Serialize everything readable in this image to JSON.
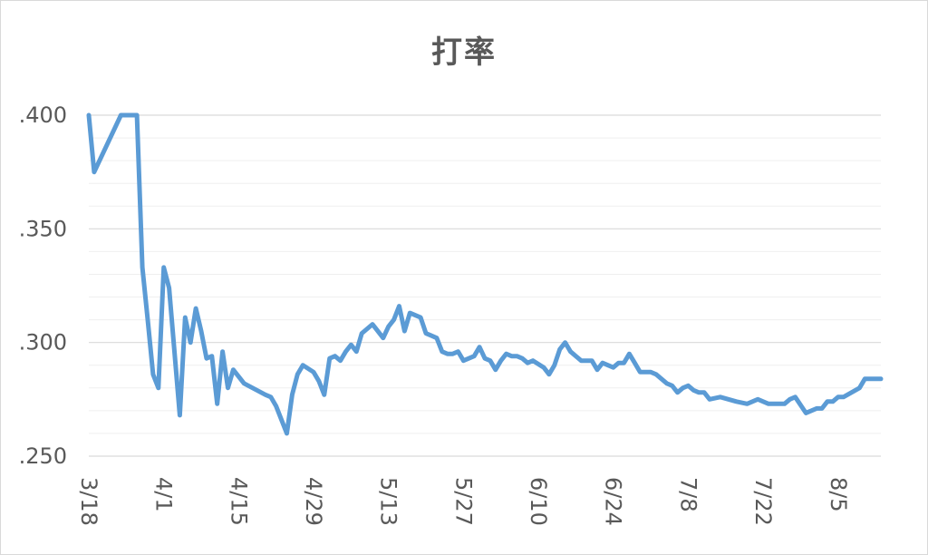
{
  "chart_data": {
    "type": "line",
    "title": "打率",
    "xlabel": "",
    "ylabel": "",
    "ylim": [
      0.25,
      0.4
    ],
    "yticks": [
      {
        "value": 0.25,
        "label": ".250"
      },
      {
        "value": 0.3,
        "label": ".300"
      },
      {
        "value": 0.35,
        "label": ".350"
      },
      {
        "value": 0.4,
        "label": ".400"
      }
    ],
    "xlim": [
      "2024-03-18",
      "2024-08-13"
    ],
    "xticks": [
      {
        "date": "2024-03-18",
        "label": "3/18"
      },
      {
        "date": "2024-04-01",
        "label": "4/1"
      },
      {
        "date": "2024-04-15",
        "label": "4/15"
      },
      {
        "date": "2024-04-29",
        "label": "4/29"
      },
      {
        "date": "2024-05-13",
        "label": "5/13"
      },
      {
        "date": "2024-05-27",
        "label": "5/27"
      },
      {
        "date": "2024-06-10",
        "label": "6/10"
      },
      {
        "date": "2024-06-24",
        "label": "6/24"
      },
      {
        "date": "2024-07-08",
        "label": "7/8"
      },
      {
        "date": "2024-07-22",
        "label": "7/22"
      },
      {
        "date": "2024-08-05",
        "label": "8/5"
      }
    ],
    "grid": true,
    "legend": "none",
    "color": "#5b9bd5",
    "series": [
      {
        "x": [
          "2024-03-18",
          "2024-03-19",
          "2024-03-24",
          "2024-03-27",
          "2024-03-28",
          "2024-03-29",
          "2024-03-30",
          "2024-03-31",
          "2024-04-01",
          "2024-04-02",
          "2024-04-04",
          "2024-04-05",
          "2024-04-06",
          "2024-04-07",
          "2024-04-08",
          "2024-04-09",
          "2024-04-10",
          "2024-04-11",
          "2024-04-12",
          "2024-04-13",
          "2024-04-14",
          "2024-04-15",
          "2024-04-16",
          "2024-04-20",
          "2024-04-21",
          "2024-04-22",
          "2024-04-23",
          "2024-04-24",
          "2024-04-25",
          "2024-04-26",
          "2024-04-27",
          "2024-04-29",
          "2024-04-30",
          "2024-05-01",
          "2024-05-02",
          "2024-05-03",
          "2024-05-04",
          "2024-05-05",
          "2024-05-06",
          "2024-05-07",
          "2024-05-08",
          "2024-05-10",
          "2024-05-11",
          "2024-05-12",
          "2024-05-13",
          "2024-05-14",
          "2024-05-15",
          "2024-05-16",
          "2024-05-17",
          "2024-05-18",
          "2024-05-19",
          "2024-05-20",
          "2024-05-21",
          "2024-05-22",
          "2024-05-23",
          "2024-05-24",
          "2024-05-25",
          "2024-05-26",
          "2024-05-27",
          "2024-05-28",
          "2024-05-29",
          "2024-05-30",
          "2024-05-31",
          "2024-06-01",
          "2024-06-02",
          "2024-06-03",
          "2024-06-04",
          "2024-06-05",
          "2024-06-06",
          "2024-06-07",
          "2024-06-08",
          "2024-06-09",
          "2024-06-11",
          "2024-06-12",
          "2024-06-13",
          "2024-06-14",
          "2024-06-15",
          "2024-06-16",
          "2024-06-18",
          "2024-06-19",
          "2024-06-20",
          "2024-06-21",
          "2024-06-22",
          "2024-06-23",
          "2024-06-24",
          "2024-06-25",
          "2024-06-26",
          "2024-06-27",
          "2024-06-28",
          "2024-06-29",
          "2024-06-30",
          "2024-07-01",
          "2024-07-02",
          "2024-07-03",
          "2024-07-04",
          "2024-07-05",
          "2024-07-06",
          "2024-07-07",
          "2024-07-08",
          "2024-07-09",
          "2024-07-10",
          "2024-07-11",
          "2024-07-12",
          "2024-07-14",
          "2024-07-17",
          "2024-07-19",
          "2024-07-21",
          "2024-07-23",
          "2024-07-24",
          "2024-07-26",
          "2024-07-27",
          "2024-07-28",
          "2024-07-30",
          "2024-07-31",
          "2024-08-01",
          "2024-08-02",
          "2024-08-03",
          "2024-08-04",
          "2024-08-05",
          "2024-08-06",
          "2024-08-09",
          "2024-08-10",
          "2024-08-13"
        ],
        "values": [
          0.4,
          0.375,
          0.4,
          0.4,
          0.333,
          0.31,
          0.286,
          0.28,
          0.333,
          0.324,
          0.268,
          0.311,
          0.3,
          0.315,
          0.305,
          0.293,
          0.294,
          0.273,
          0.296,
          0.28,
          0.288,
          0.285,
          0.282,
          0.277,
          0.276,
          0.272,
          0.266,
          0.26,
          0.277,
          0.286,
          0.29,
          0.287,
          0.283,
          0.277,
          0.293,
          0.294,
          0.292,
          0.296,
          0.299,
          0.296,
          0.304,
          0.308,
          0.305,
          0.302,
          0.307,
          0.31,
          0.316,
          0.305,
          0.313,
          0.312,
          0.311,
          0.304,
          0.303,
          0.302,
          0.296,
          0.295,
          0.295,
          0.296,
          0.292,
          0.293,
          0.294,
          0.298,
          0.293,
          0.292,
          0.288,
          0.292,
          0.295,
          0.294,
          0.294,
          0.293,
          0.291,
          0.292,
          0.289,
          0.286,
          0.29,
          0.297,
          0.3,
          0.296,
          0.292,
          0.292,
          0.292,
          0.288,
          0.291,
          0.29,
          0.289,
          0.291,
          0.291,
          0.295,
          0.291,
          0.287,
          0.287,
          0.287,
          0.286,
          0.284,
          0.282,
          0.281,
          0.278,
          0.28,
          0.281,
          0.279,
          0.278,
          0.278,
          0.275,
          0.276,
          0.274,
          0.273,
          0.275,
          0.273,
          0.273,
          0.273,
          0.275,
          0.276,
          0.269,
          0.27,
          0.271,
          0.271,
          0.274,
          0.274,
          0.276,
          0.276,
          0.28,
          0.284,
          0.284
        ]
      }
    ]
  }
}
